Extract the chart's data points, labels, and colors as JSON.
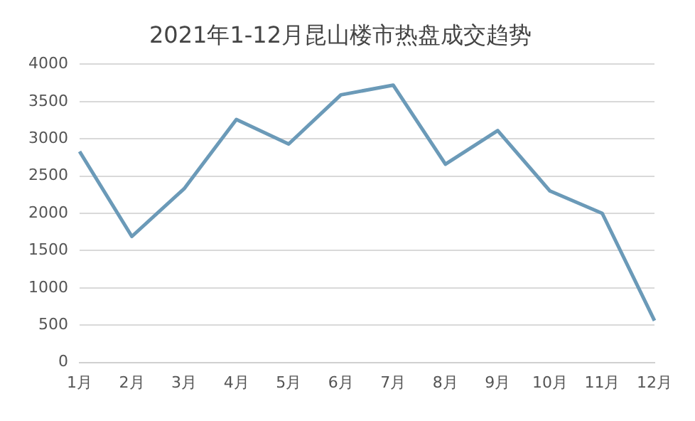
{
  "chart_data": {
    "type": "line",
    "title": "2021年1-12月昆山楼市热盘成交趋势",
    "categories": [
      "1月",
      "2月",
      "3月",
      "4月",
      "5月",
      "6月",
      "7月",
      "8月",
      "9月",
      "10月",
      "11月",
      "12月"
    ],
    "series": [
      {
        "color": "#6b9ab8",
        "values": [
          2830,
          1690,
          2330,
          3260,
          2930,
          3590,
          3720,
          2660,
          3110,
          2300,
          2000,
          560
        ]
      }
    ],
    "ylim": [
      0,
      4000
    ],
    "yticks": [
      0,
      500,
      1000,
      1500,
      2000,
      2500,
      3000,
      3500,
      4000
    ],
    "grid": "y",
    "legend": false,
    "marker": "none",
    "line_style": "solid"
  }
}
